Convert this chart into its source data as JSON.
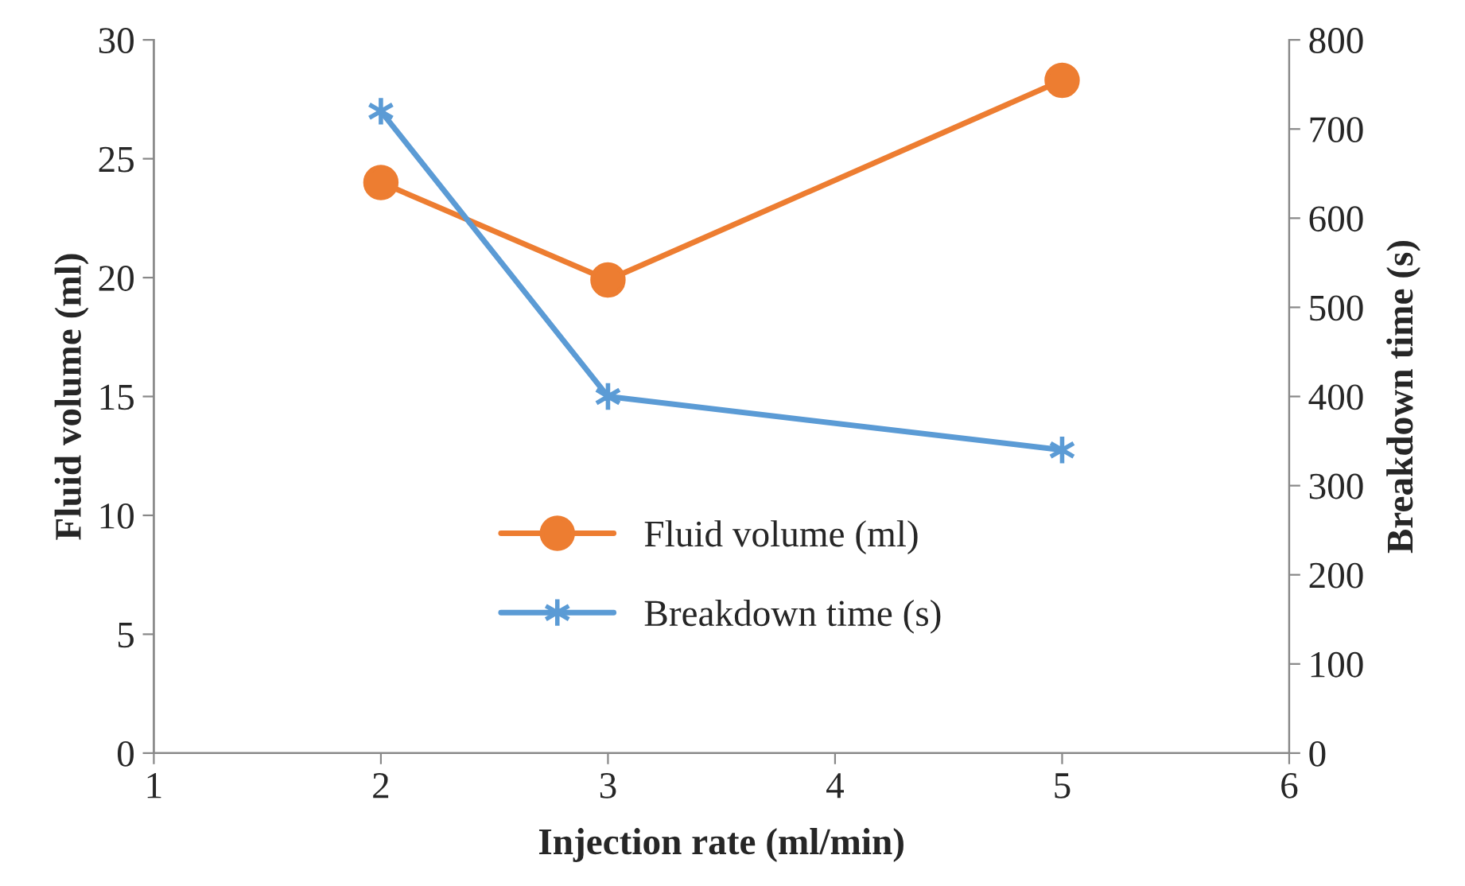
{
  "chart_data": {
    "type": "line",
    "xlabel": "Injection rate (ml/min)",
    "ylabel": "Fluid volume (ml)",
    "y2label": "Breakdown time (s)",
    "xlim": [
      1,
      6
    ],
    "xticks": [
      1,
      2,
      3,
      4,
      5,
      6
    ],
    "ylim": [
      0,
      30
    ],
    "yticks": [
      0,
      5,
      10,
      15,
      20,
      25,
      30
    ],
    "y2lim": [
      0,
      800
    ],
    "y2ticks": [
      0,
      100,
      200,
      300,
      400,
      500,
      600,
      700,
      800
    ],
    "x": [
      2,
      3,
      5
    ],
    "series": [
      {
        "name": "Fluid volume (ml)",
        "color": "#ed7d31",
        "values": [
          24,
          19.9,
          28.3
        ],
        "marker": "circle"
      },
      {
        "name": "Breakdown time (s)",
        "color": "#5b9bd5",
        "values": [
          720,
          400,
          340
        ],
        "marker": "cross",
        "axis": "y2"
      }
    ],
    "legend": "bottom",
    "grid": false
  }
}
